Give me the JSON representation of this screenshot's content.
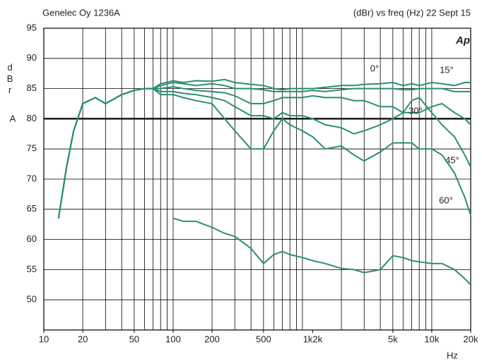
{
  "chart_data": {
    "type": "line",
    "title": "Genelec Oy 1236A",
    "subtitle": "(dBr) vs freq (Hz) 22 Sept 15",
    "y_label": "dBr",
    "y_unit": "A",
    "x_label": "Hz",
    "logo": "Ap",
    "x_scale": "log",
    "xlim": [
      10,
      20000
    ],
    "ylim": [
      45,
      95
    ],
    "xticks": [
      10,
      20,
      50,
      100,
      200,
      500,
      {
        "value": 1200,
        "label": "1k2k"
      },
      {
        "value": 5000,
        "label": "5k"
      },
      {
        "value": 10000,
        "label": "10k"
      },
      {
        "value": 20000,
        "label": "20k"
      }
    ],
    "yticks": [
      50,
      55,
      60,
      65,
      70,
      75,
      80,
      85,
      90,
      95
    ],
    "xgrid": [
      20,
      30,
      40,
      50,
      60,
      70,
      80,
      90,
      100,
      200,
      300,
      400,
      500,
      600,
      700,
      800,
      900,
      1000,
      2000,
      3000,
      4000,
      5000,
      6000,
      7000,
      8000,
      9000,
      10000
    ],
    "reference_line": 80,
    "grid": true,
    "x": [
      13,
      15,
      17,
      20,
      25,
      30,
      40,
      50,
      60,
      70,
      80,
      100,
      120,
      150,
      200,
      250,
      300,
      400,
      500,
      600,
      700,
      800,
      1000,
      1200,
      1500,
      2000,
      2500,
      3000,
      4000,
      5000,
      6000,
      7000,
      8000,
      10000,
      12000,
      15000,
      18000,
      20000
    ],
    "series": [
      {
        "name": "0°",
        "color": "#2a8f72",
        "values": [
          63.5,
          72,
          78,
          82.5,
          83.5,
          82.5,
          84,
          84.7,
          85,
          85,
          85.8,
          86.3,
          86,
          86.3,
          86.2,
          86.5,
          86,
          85.7,
          85.5,
          85,
          84.8,
          85,
          85,
          85,
          85.2,
          85.5,
          85.5,
          85.7,
          85.8,
          86,
          85.5,
          85.8,
          85.5,
          86,
          85.8,
          85.5,
          86,
          86
        ]
      },
      {
        "name": "15°",
        "color": "#2a8f72",
        "values": [
          63.5,
          72,
          78,
          82.5,
          83.5,
          82.5,
          84,
          84.7,
          85,
          85,
          85.5,
          86,
          85.8,
          85.5,
          85.8,
          85.5,
          85,
          85,
          84.8,
          84.5,
          84.5,
          84.5,
          84.5,
          84.7,
          84.5,
          84.8,
          85,
          85,
          85,
          85,
          84.8,
          84.8,
          85,
          85,
          85,
          84.5,
          84.5,
          84.5
        ]
      },
      {
        "name": "30°",
        "color": "#2a8f72",
        "values": [
          63.5,
          72,
          78,
          82.5,
          83.5,
          82.5,
          84,
          84.7,
          85,
          85,
          85,
          85.3,
          85,
          84.7,
          84.5,
          84.3,
          83.8,
          82.5,
          82.5,
          83,
          83.5,
          83.5,
          83.5,
          83.8,
          83.5,
          83.5,
          83,
          83,
          82,
          82,
          81,
          81,
          81,
          82,
          82.5,
          81,
          80,
          79
        ]
      },
      {
        "name": "45°",
        "color": "#2a8f72",
        "values": [
          63.5,
          72,
          78,
          82.5,
          83.5,
          82.5,
          84,
          84.7,
          85,
          85,
          84.5,
          84.5,
          84.2,
          84,
          83.5,
          83,
          82,
          80.5,
          80.5,
          80,
          81,
          80.5,
          80.5,
          80,
          79,
          78.5,
          77.5,
          78,
          79,
          80,
          81,
          83,
          83.5,
          81,
          79,
          77,
          74,
          72
        ]
      },
      {
        "name": "60°",
        "color": "#2a8f72",
        "values": [
          63.5,
          72,
          78,
          82.5,
          83.5,
          82.5,
          84,
          84.7,
          85,
          85,
          84,
          84,
          83.5,
          83,
          82.5,
          80,
          78,
          75,
          75,
          78,
          80,
          79,
          78,
          77,
          75,
          75.5,
          74,
          73,
          74.5,
          76,
          76,
          76,
          75,
          75,
          74,
          71,
          67,
          64
        ]
      },
      {
        "color": "#2a8f72",
        "values": [
          null,
          null,
          null,
          null,
          null,
          null,
          null,
          null,
          null,
          null,
          null,
          63.5,
          63,
          63,
          62,
          61,
          60.5,
          58.5,
          56,
          57.5,
          58,
          57.5,
          57,
          56.5,
          56,
          55.2,
          55,
          54.5,
          55,
          57.3,
          57,
          56.5,
          56.3,
          56,
          56,
          55,
          53.5,
          52.5
        ]
      }
    ]
  }
}
